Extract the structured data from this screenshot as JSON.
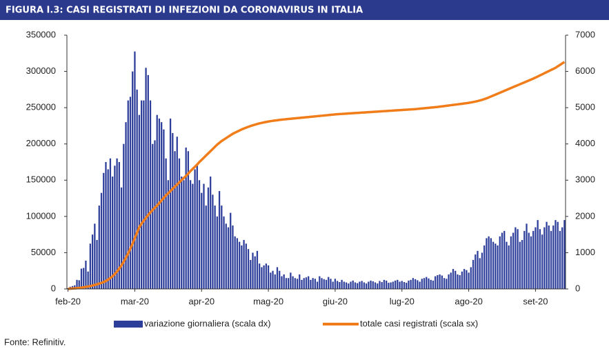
{
  "chart_data": {
    "type": "bar",
    "title": "FIGURA I.3: CASI REGISTRATI DI INFEZIONI DA CORONAVIRUS IN ITALIA",
    "source": "Fonte: Refinitiv.",
    "legend": "bottom",
    "ylim": [
      0,
      350000
    ],
    "yticks": [
      0,
      50000,
      100000,
      150000,
      200000,
      250000,
      300000,
      350000
    ],
    "y2lim": [
      0,
      7000
    ],
    "y2ticks": [
      0,
      1000,
      2000,
      3000,
      4000,
      5000,
      6000,
      7000
    ],
    "categories": [
      "feb-20",
      null,
      null,
      null,
      null,
      null,
      null,
      null,
      null,
      null,
      null,
      null,
      null,
      null,
      null,
      null,
      null,
      null,
      null,
      null,
      null,
      null,
      null,
      null,
      null,
      null,
      null,
      null,
      null,
      null,
      "mar-20",
      null,
      null,
      null,
      null,
      null,
      null,
      null,
      null,
      null,
      null,
      null,
      null,
      null,
      null,
      null,
      null,
      null,
      null,
      null,
      null,
      null,
      null,
      null,
      null,
      null,
      null,
      null,
      null,
      null,
      "apr-20",
      null,
      null,
      null,
      null,
      null,
      null,
      null,
      null,
      null,
      null,
      null,
      null,
      null,
      null,
      null,
      null,
      null,
      null,
      null,
      null,
      null,
      null,
      null,
      null,
      null,
      null,
      null,
      null,
      null,
      "mag-20",
      null,
      null,
      null,
      null,
      null,
      null,
      null,
      null,
      null,
      null,
      null,
      null,
      null,
      null,
      null,
      null,
      null,
      null,
      null,
      null,
      null,
      null,
      null,
      null,
      null,
      null,
      null,
      null,
      null,
      "giu-20",
      null,
      null,
      null,
      null,
      null,
      null,
      null,
      null,
      null,
      null,
      null,
      null,
      null,
      null,
      null,
      null,
      null,
      null,
      null,
      null,
      null,
      null,
      null,
      null,
      null,
      null,
      null,
      null,
      null,
      "lug-20",
      null,
      null,
      null,
      null,
      null,
      null,
      null,
      null,
      null,
      null,
      null,
      null,
      null,
      null,
      null,
      null,
      null,
      null,
      null,
      null,
      null,
      null,
      null,
      null,
      null,
      null,
      null,
      null,
      null,
      "ago-20",
      null,
      null,
      null,
      null,
      null,
      null,
      null,
      null,
      null,
      null,
      null,
      null,
      null,
      null,
      null,
      null,
      null,
      null,
      null,
      null,
      null,
      null,
      null,
      null,
      null,
      null,
      null,
      null,
      null,
      "set-20",
      null,
      null,
      null,
      null,
      null,
      null,
      null,
      null,
      null,
      null,
      null,
      null,
      null
    ],
    "series": [
      {
        "name": "variazione giornaliera (scala dx)",
        "type": "bar",
        "axis": "y2",
        "color": "#2d3d9a",
        "values": [
          20,
          60,
          80,
          100,
          250,
          240,
          560,
          580,
          780,
          480,
          1250,
          1500,
          1800,
          1350,
          2300,
          2650,
          3200,
          3500,
          3300,
          3600,
          3100,
          3400,
          3600,
          3500,
          2800,
          4000,
          4600,
          5200,
          5300,
          6000,
          6550,
          5500,
          4800,
          5200,
          5200,
          6100,
          5900,
          5200,
          4000,
          4100,
          4800,
          4700,
          4600,
          4400,
          3600,
          3000,
          4700,
          4300,
          3800,
          4200,
          3600,
          3100,
          3000,
          3900,
          3800,
          3000,
          2900,
          3300,
          3400,
          3000,
          2650,
          2900,
          2300,
          2800,
          3100,
          2600,
          2300,
          2000,
          2700,
          2300,
          2000,
          1800,
          1700,
          2100,
          1750,
          1450,
          1400,
          1300,
          1200,
          1350,
          1250,
          1100,
          800,
          1000,
          900,
          1050,
          700,
          600,
          650,
          700,
          650,
          450,
          500,
          400,
          600,
          500,
          350,
          400,
          300,
          300,
          450,
          350,
          300,
          280,
          400,
          250,
          300,
          320,
          350,
          250,
          300,
          280,
          200,
          350,
          300,
          270,
          250,
          330,
          280,
          200,
          280,
          220,
          190,
          250,
          200,
          180,
          150,
          200,
          230,
          180,
          160,
          200,
          220,
          180,
          150,
          200,
          230,
          210,
          180,
          150,
          220,
          190,
          250,
          230,
          170,
          180,
          200,
          230,
          250,
          200,
          220,
          190,
          170,
          230,
          250,
          300,
          270,
          240,
          200,
          280,
          300,
          330,
          290,
          250,
          230,
          350,
          380,
          400,
          370,
          300,
          280,
          400,
          450,
          550,
          500,
          400,
          380,
          480,
          550,
          520,
          450,
          600,
          800,
          950,
          1050,
          850,
          1000,
          1200,
          1400,
          1450,
          1400,
          1300,
          1250,
          1200,
          1450,
          1550,
          1600,
          1300,
          1200,
          1450,
          1550,
          1700,
          1650,
          1300,
          1350,
          1600,
          1800,
          1550,
          1450,
          1600,
          1700,
          1900,
          1650,
          1500,
          1700,
          1850,
          1750,
          1600,
          1750,
          1900,
          1850,
          1600,
          1700,
          1900
        ]
      },
      {
        "name": "totale casi registrati (scala sx)",
        "type": "line",
        "color": "#f07d1a",
        "values": [
          200,
          400,
          600,
          800,
          1100,
          1400,
          1800,
          2300,
          2900,
          3400,
          4000,
          4700,
          5500,
          6400,
          7300,
          8300,
          9500,
          11000,
          12800,
          15000,
          17500,
          20500,
          24000,
          28000,
          32500,
          37500,
          43000,
          49000,
          55500,
          62500,
          70000,
          77500,
          85000,
          90000,
          94000,
          98000,
          102000,
          105500,
          109000,
          112000,
          115000,
          118500,
          122000,
          125500,
          129000,
          132000,
          135000,
          138000,
          141000,
          144000,
          147000,
          150000,
          153000,
          156000,
          159000,
          162500,
          165500,
          168500,
          171500,
          175000,
          178000,
          181000,
          184000,
          187000,
          190000,
          193000,
          196000,
          199000,
          201500,
          204000,
          206000,
          208000,
          210000,
          212000,
          214000,
          215500,
          217000,
          218500,
          220000,
          221200,
          222400,
          223600,
          224700,
          225700,
          226600,
          227500,
          228300,
          229000,
          229700,
          230300,
          230900,
          231400,
          231900,
          232300,
          232700,
          233100,
          233500,
          233800,
          234100,
          234400,
          234700,
          235000,
          235300,
          235600,
          235900,
          236200,
          236500,
          236800,
          237100,
          237400,
          237700,
          238000,
          238300,
          238600,
          238900,
          239200,
          239500,
          239800,
          240100,
          240400,
          240700,
          241000,
          241200,
          241400,
          241600,
          241800,
          242000,
          242200,
          242400,
          242600,
          242800,
          243000,
          243200,
          243400,
          243600,
          243800,
          244000,
          244200,
          244400,
          244600,
          244800,
          245000,
          245200,
          245400,
          245600,
          245800,
          246000,
          246200,
          246400,
          246600,
          246800,
          247000,
          247200,
          247400,
          247600,
          247800,
          248000,
          248300,
          248600,
          248900,
          249200,
          249500,
          249800,
          250100,
          250400,
          250700,
          251000,
          251400,
          251800,
          252200,
          252600,
          253000,
          253400,
          253800,
          254200,
          254600,
          255000,
          255400,
          255800,
          256200,
          256700,
          257200,
          257800,
          258400,
          259100,
          259900,
          260800,
          261800,
          262900,
          264100,
          265400,
          266700,
          268000,
          269300,
          270600,
          271900,
          273200,
          274500,
          275800,
          277100,
          278400,
          279700,
          281000,
          282300,
          283600,
          284900,
          286200,
          287500,
          288800,
          290100,
          291500,
          293000,
          294500,
          296000,
          297500,
          299000,
          300500,
          302000,
          303500,
          305000,
          307000,
          309000,
          311000,
          313000
        ]
      }
    ]
  }
}
